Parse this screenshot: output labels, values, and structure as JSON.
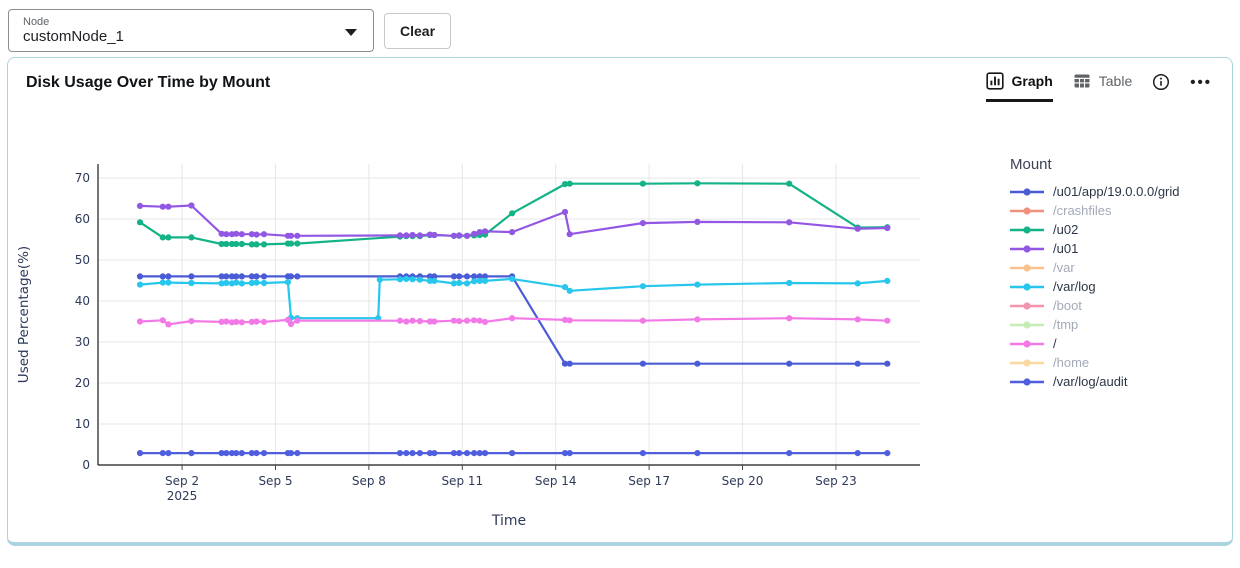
{
  "filter_bar": {
    "node_select": {
      "label": "Node",
      "value": "customNode_1"
    },
    "clear_button": "Clear"
  },
  "card": {
    "title": "Disk Usage Over Time by Mount",
    "tabs": {
      "graph": "Graph",
      "table": "Table"
    },
    "border_color": "#a9d4e0"
  },
  "chart_data": {
    "type": "line",
    "title": "Disk Usage Over Time by Mount",
    "xlabel": "Time",
    "ylabel": "Used Percentage(%)",
    "ylim": [
      0,
      70
    ],
    "y_ticks": [
      0,
      10,
      20,
      30,
      40,
      50,
      60,
      70
    ],
    "x_domain_days": [
      -0.7,
      25.7
    ],
    "x_ticks": [
      {
        "day": 2,
        "label": "Sep 2",
        "sublabel": "2025"
      },
      {
        "day": 5,
        "label": "Sep 5"
      },
      {
        "day": 8,
        "label": "Sep 8"
      },
      {
        "day": 11,
        "label": "Sep 11"
      },
      {
        "day": 14,
        "label": "Sep 14"
      },
      {
        "day": 17,
        "label": "Sep 17"
      },
      {
        "day": 20,
        "label": "Sep 20"
      },
      {
        "day": 23,
        "label": "Sep 23"
      }
    ],
    "grid": true,
    "legend_title": "Mount",
    "legend_position": "right",
    "series": [
      {
        "name": "/u01/app/19.0.0.0/grid",
        "color": "#4a5bd6",
        "active": true,
        "points": [
          [
            0.65,
            46
          ],
          [
            1.38,
            46
          ],
          [
            1.56,
            46
          ],
          [
            2.3,
            46
          ],
          [
            3.27,
            46
          ],
          [
            3.42,
            46
          ],
          [
            3.6,
            46
          ],
          [
            3.74,
            46
          ],
          [
            3.92,
            46
          ],
          [
            4.24,
            46
          ],
          [
            4.39,
            46
          ],
          [
            4.63,
            46
          ],
          [
            5.4,
            46
          ],
          [
            5.5,
            46
          ],
          [
            5.7,
            46
          ],
          [
            9.0,
            46
          ],
          [
            9.2,
            46
          ],
          [
            9.4,
            46
          ],
          [
            9.64,
            46
          ],
          [
            9.96,
            46
          ],
          [
            10.1,
            46
          ],
          [
            10.73,
            46
          ],
          [
            10.9,
            46
          ],
          [
            11.15,
            46
          ],
          [
            11.38,
            46
          ],
          [
            11.56,
            46
          ],
          [
            11.73,
            46
          ],
          [
            12.6,
            46
          ],
          [
            14.3,
            24.7
          ],
          [
            14.45,
            24.7
          ],
          [
            16.8,
            24.7
          ],
          [
            18.55,
            24.7
          ],
          [
            21.5,
            24.7
          ],
          [
            23.7,
            24.7
          ],
          [
            24.65,
            24.7
          ]
        ]
      },
      {
        "name": "/crashfiles",
        "color": "#f2907e",
        "active": false,
        "points": []
      },
      {
        "name": "/u02",
        "color": "#13b287",
        "active": true,
        "points": [
          [
            0.65,
            59.2
          ],
          [
            1.38,
            55.5
          ],
          [
            1.56,
            55.5
          ],
          [
            2.3,
            55.5
          ],
          [
            3.27,
            53.9
          ],
          [
            3.42,
            53.9
          ],
          [
            3.6,
            53.9
          ],
          [
            3.74,
            53.9
          ],
          [
            3.92,
            53.9
          ],
          [
            4.24,
            53.8
          ],
          [
            4.39,
            53.8
          ],
          [
            4.63,
            53.8
          ],
          [
            5.4,
            54.0
          ],
          [
            5.5,
            54.0
          ],
          [
            5.7,
            54.0
          ],
          [
            9.0,
            55.7
          ],
          [
            9.2,
            55.8
          ],
          [
            9.4,
            55.8
          ],
          [
            9.64,
            55.8
          ],
          [
            9.96,
            56.1
          ],
          [
            10.1,
            56.1
          ],
          [
            10.73,
            55.9
          ],
          [
            10.9,
            55.9
          ],
          [
            11.15,
            55.9
          ],
          [
            11.38,
            56.0
          ],
          [
            11.56,
            56.1
          ],
          [
            11.73,
            56.2
          ],
          [
            12.6,
            61.4
          ],
          [
            14.3,
            68.5
          ],
          [
            14.45,
            68.6
          ],
          [
            16.8,
            68.6
          ],
          [
            18.55,
            68.7
          ],
          [
            21.5,
            68.6
          ],
          [
            23.7,
            57.9
          ],
          [
            24.65,
            58.0
          ]
        ]
      },
      {
        "name": "/u01",
        "color": "#9257e3",
        "active": true,
        "points": [
          [
            0.65,
            63.2
          ],
          [
            1.38,
            63.0
          ],
          [
            1.56,
            63.0
          ],
          [
            2.3,
            63.3
          ],
          [
            3.27,
            56.4
          ],
          [
            3.42,
            56.3
          ],
          [
            3.6,
            56.3
          ],
          [
            3.74,
            56.4
          ],
          [
            3.92,
            56.3
          ],
          [
            4.24,
            56.3
          ],
          [
            4.39,
            56.2
          ],
          [
            4.63,
            56.3
          ],
          [
            5.4,
            55.9
          ],
          [
            5.5,
            55.9
          ],
          [
            5.7,
            55.9
          ],
          [
            9.0,
            56.0
          ],
          [
            9.2,
            56.0
          ],
          [
            9.4,
            56.1
          ],
          [
            9.64,
            56.0
          ],
          [
            9.96,
            56.2
          ],
          [
            10.1,
            56.1
          ],
          [
            10.73,
            55.9
          ],
          [
            10.9,
            56.0
          ],
          [
            11.15,
            55.9
          ],
          [
            11.38,
            56.4
          ],
          [
            11.56,
            56.8
          ],
          [
            11.73,
            57.0
          ],
          [
            12.6,
            56.8
          ],
          [
            14.3,
            61.7
          ],
          [
            14.45,
            56.3
          ],
          [
            16.8,
            59.0
          ],
          [
            18.55,
            59.3
          ],
          [
            21.5,
            59.2
          ],
          [
            23.7,
            57.6
          ],
          [
            24.65,
            57.8
          ]
        ]
      },
      {
        "name": "/var",
        "color": "#fac18e",
        "active": false,
        "points": []
      },
      {
        "name": "/var/log",
        "color": "#27c6ec",
        "active": true,
        "points": [
          [
            0.65,
            44.0
          ],
          [
            1.38,
            44.5
          ],
          [
            1.56,
            44.5
          ],
          [
            2.3,
            44.4
          ],
          [
            3.27,
            44.3
          ],
          [
            3.42,
            44.4
          ],
          [
            3.6,
            44.3
          ],
          [
            3.74,
            44.5
          ],
          [
            3.92,
            44.3
          ],
          [
            4.24,
            44.4
          ],
          [
            4.39,
            44.5
          ],
          [
            4.63,
            44.4
          ],
          [
            5.4,
            44.6
          ],
          [
            5.5,
            35.9
          ],
          [
            5.7,
            35.8
          ],
          [
            8.3,
            35.8
          ],
          [
            8.35,
            45.2
          ],
          [
            9.0,
            45.3
          ],
          [
            9.2,
            45.4
          ],
          [
            9.4,
            45.3
          ],
          [
            9.64,
            45.2
          ],
          [
            9.96,
            44.9
          ],
          [
            10.1,
            44.9
          ],
          [
            10.73,
            44.3
          ],
          [
            10.9,
            44.4
          ],
          [
            11.15,
            44.3
          ],
          [
            11.38,
            44.8
          ],
          [
            11.56,
            44.9
          ],
          [
            11.73,
            44.9
          ],
          [
            12.6,
            45.4
          ],
          [
            14.3,
            43.4
          ],
          [
            14.45,
            42.5
          ],
          [
            16.8,
            43.6
          ],
          [
            18.55,
            44.0
          ],
          [
            21.5,
            44.4
          ],
          [
            23.7,
            44.3
          ],
          [
            24.65,
            44.9
          ]
        ]
      },
      {
        "name": "/boot",
        "color": "#f495ad",
        "active": false,
        "points": []
      },
      {
        "name": "/tmp",
        "color": "#c5edb4",
        "active": false,
        "points": []
      },
      {
        "name": "/",
        "color": "#f379e7",
        "active": true,
        "points": [
          [
            0.65,
            35.0
          ],
          [
            1.38,
            35.3
          ],
          [
            1.56,
            34.3
          ],
          [
            2.3,
            35.1
          ],
          [
            3.27,
            34.9
          ],
          [
            3.42,
            35.0
          ],
          [
            3.6,
            34.8
          ],
          [
            3.74,
            34.9
          ],
          [
            3.92,
            34.8
          ],
          [
            4.24,
            34.9
          ],
          [
            4.39,
            35.0
          ],
          [
            4.63,
            34.9
          ],
          [
            5.4,
            35.4
          ],
          [
            5.5,
            34.4
          ],
          [
            5.7,
            35.2
          ],
          [
            9.0,
            35.2
          ],
          [
            9.2,
            35.0
          ],
          [
            9.4,
            35.2
          ],
          [
            9.64,
            35.1
          ],
          [
            9.96,
            35.0
          ],
          [
            10.1,
            35.0
          ],
          [
            10.73,
            35.2
          ],
          [
            10.9,
            35.1
          ],
          [
            11.15,
            35.2
          ],
          [
            11.38,
            35.3
          ],
          [
            11.56,
            35.2
          ],
          [
            11.73,
            34.9
          ],
          [
            12.6,
            35.8
          ],
          [
            14.3,
            35.4
          ],
          [
            14.45,
            35.3
          ],
          [
            16.8,
            35.2
          ],
          [
            18.55,
            35.5
          ],
          [
            21.5,
            35.8
          ],
          [
            23.7,
            35.5
          ],
          [
            24.65,
            35.2
          ]
        ]
      },
      {
        "name": "/home",
        "color": "#fbd89d",
        "active": false,
        "points": []
      },
      {
        "name": "/var/log/audit",
        "color": "#4f5ede",
        "active": true,
        "points": [
          [
            0.65,
            2.9
          ],
          [
            1.38,
            2.9
          ],
          [
            1.56,
            2.9
          ],
          [
            2.3,
            2.9
          ],
          [
            3.27,
            2.9
          ],
          [
            3.42,
            2.9
          ],
          [
            3.6,
            2.9
          ],
          [
            3.74,
            2.9
          ],
          [
            3.92,
            2.9
          ],
          [
            4.24,
            2.9
          ],
          [
            4.39,
            2.9
          ],
          [
            4.63,
            2.9
          ],
          [
            5.4,
            2.9
          ],
          [
            5.5,
            2.9
          ],
          [
            5.7,
            2.9
          ],
          [
            9.0,
            2.9
          ],
          [
            9.2,
            2.9
          ],
          [
            9.4,
            2.9
          ],
          [
            9.64,
            2.9
          ],
          [
            9.96,
            2.9
          ],
          [
            10.1,
            2.9
          ],
          [
            10.73,
            2.9
          ],
          [
            10.9,
            2.9
          ],
          [
            11.15,
            2.9
          ],
          [
            11.38,
            2.9
          ],
          [
            11.56,
            2.9
          ],
          [
            11.73,
            2.9
          ],
          [
            12.6,
            2.9
          ],
          [
            14.3,
            2.9
          ],
          [
            14.45,
            2.9
          ],
          [
            16.8,
            2.9
          ],
          [
            18.55,
            2.9
          ],
          [
            21.5,
            2.9
          ],
          [
            23.7,
            2.9
          ],
          [
            24.65,
            2.9
          ]
        ]
      }
    ]
  }
}
